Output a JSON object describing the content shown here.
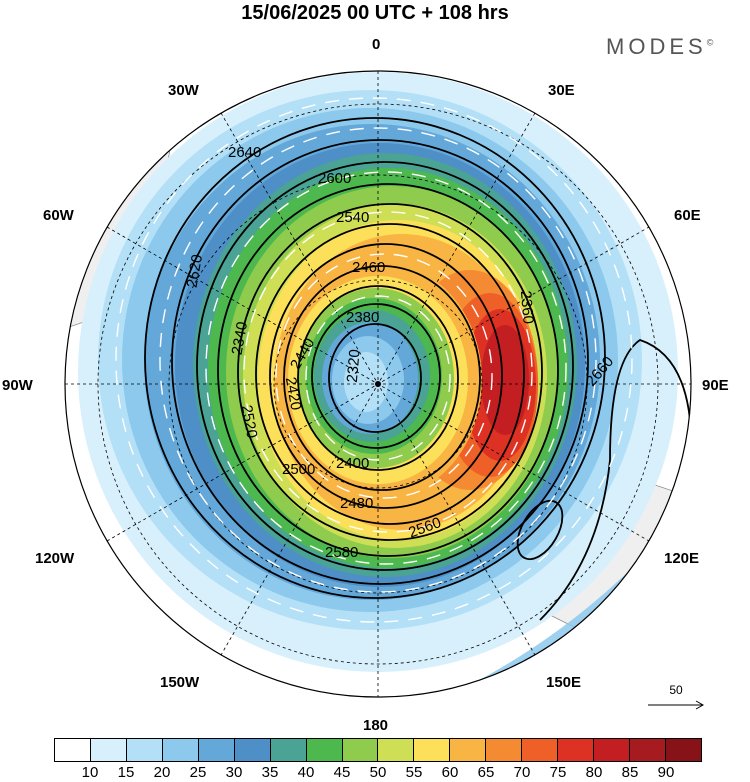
{
  "title": "15/06/2025  00 UTC  + 108 hrs",
  "brand": "MODES",
  "brand_mark": "©",
  "longitude_labels": [
    {
      "text": "0",
      "lon": 0
    },
    {
      "text": "30E",
      "lon": 30
    },
    {
      "text": "60E",
      "lon": 60
    },
    {
      "text": "90E",
      "lon": 90
    },
    {
      "text": "120E",
      "lon": 120
    },
    {
      "text": "150E",
      "lon": 150
    },
    {
      "text": "180",
      "lon": 180
    },
    {
      "text": "150W",
      "lon": -150
    },
    {
      "text": "120W",
      "lon": -120
    },
    {
      "text": "90W",
      "lon": -90
    },
    {
      "text": "60W",
      "lon": -60
    },
    {
      "text": "30W",
      "lon": -30
    }
  ],
  "contour_labels": [
    "2640",
    "2600",
    "2620",
    "2540",
    "2460",
    "2380",
    "2440",
    "2580",
    "2320",
    "2420",
    "2520",
    "2340",
    "2560",
    "2400",
    "2480",
    "2360",
    "2500",
    "2660"
  ],
  "colorbar": {
    "ticks": [
      "10",
      "15",
      "20",
      "25",
      "30",
      "35",
      "40",
      "45",
      "50",
      "55",
      "60",
      "65",
      "70",
      "75",
      "80",
      "85",
      "90"
    ],
    "colors": [
      "#ffffff",
      "#d8f0fb",
      "#b3e0f6",
      "#8cc9ec",
      "#64a8da",
      "#4d8fc6",
      "#4aa394",
      "#4cb84e",
      "#8fcb4d",
      "#cfdf55",
      "#fce05a",
      "#f9b543",
      "#f48b33",
      "#ee6028",
      "#dd3223",
      "#c31f22",
      "#a51b20",
      "#871318"
    ]
  },
  "reference_vector": {
    "label": "50"
  }
}
